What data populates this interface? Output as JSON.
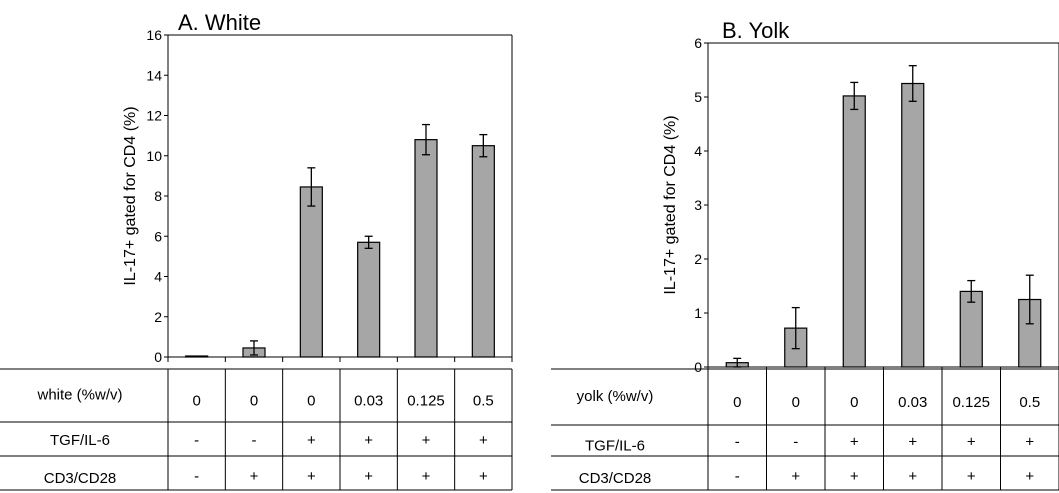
{
  "chart_data": [
    {
      "type": "bar",
      "title": "A. White",
      "ylabel": "IL-17+ gated for CD4 (%)",
      "ylim": [
        0,
        16
      ],
      "yticks": [
        0,
        2,
        4,
        6,
        8,
        10,
        12,
        14,
        16
      ],
      "values": [
        0.05,
        0.45,
        8.45,
        5.7,
        10.8,
        10.5
      ],
      "errors": [
        0.0,
        0.35,
        0.95,
        0.3,
        0.75,
        0.55
      ],
      "bar_color": "#a6a6a6",
      "table": {
        "rows": [
          {
            "label": "white (%w/v)",
            "cells": [
              "0",
              "0",
              "0",
              "0.03",
              "0.125",
              "0.5"
            ]
          },
          {
            "label": "TGF/IL-6",
            "cells": [
              "-",
              "-",
              "+",
              "+",
              "+",
              "+"
            ]
          },
          {
            "label": "CD3/CD28",
            "cells": [
              "-",
              "+",
              "+",
              "+",
              "+",
              "+"
            ]
          }
        ]
      }
    },
    {
      "type": "bar",
      "title": "B. Yolk",
      "ylabel": "IL-17+ gated for CD4 (%)",
      "ylim": [
        0,
        6
      ],
      "yticks": [
        0,
        1,
        2,
        3,
        4,
        5,
        6
      ],
      "values": [
        0.08,
        0.72,
        5.02,
        5.25,
        1.4,
        1.25
      ],
      "errors": [
        0.08,
        0.38,
        0.25,
        0.33,
        0.2,
        0.45
      ],
      "bar_color": "#a6a6a6",
      "table": {
        "rows": [
          {
            "label": "yolk (%w/v)",
            "cells": [
              "0",
              "0",
              "0",
              "0.03",
              "0.125",
              "0.5"
            ]
          },
          {
            "label": "TGF/IL-6",
            "cells": [
              "-",
              "-",
              "+",
              "+",
              "+",
              "+"
            ]
          },
          {
            "label": "CD3/CD28",
            "cells": [
              "-",
              "+",
              "+",
              "+",
              "+",
              "+"
            ]
          }
        ]
      }
    }
  ]
}
